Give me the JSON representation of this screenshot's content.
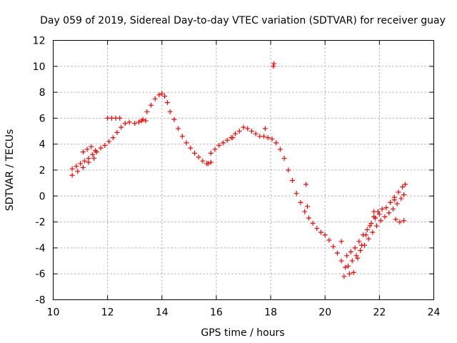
{
  "chart_data": {
    "type": "scatter",
    "title": "Day 059 of 2019, Sidereal Day-to-day VTEC variation (SDTVAR) for receiver guay",
    "xlabel": "GPS time / hours",
    "ylabel": "SDTVAR / TECUs",
    "xlim": [
      10,
      24
    ],
    "ylim": [
      -8,
      12
    ],
    "xticks": [
      10,
      12,
      14,
      16,
      18,
      20,
      22,
      24
    ],
    "yticks": [
      -8,
      -6,
      -4,
      -2,
      0,
      2,
      4,
      6,
      8,
      10,
      12
    ],
    "grid": true,
    "marker": "+",
    "color": "#ff0000",
    "series": [
      {
        "name": "main",
        "x": [
          10.7,
          10.85,
          11.0,
          11.15,
          11.3,
          11.45,
          11.6,
          11.75,
          11.9,
          12.05,
          12.2,
          12.35,
          12.5,
          12.65,
          12.8,
          13.0,
          13.15,
          13.3,
          13.45,
          13.6,
          13.75,
          13.9,
          14.0,
          14.1,
          14.2,
          14.3,
          14.45,
          14.6,
          14.75,
          14.9,
          15.05,
          15.2,
          15.35,
          15.5,
          15.65,
          15.8,
          15.95,
          16.1,
          16.25,
          16.4,
          16.55,
          16.7,
          16.85,
          17.0,
          17.15,
          17.3,
          17.45,
          17.6,
          17.75,
          17.9,
          18.05,
          18.2,
          18.35,
          18.5,
          18.65,
          18.8,
          18.95,
          19.1,
          19.25,
          19.4,
          19.55,
          19.7,
          19.85,
          20.0,
          20.15,
          20.3,
          20.45,
          20.6,
          20.75,
          20.9,
          21.05,
          21.2,
          21.35,
          21.5,
          21.65,
          21.8,
          21.95,
          22.1,
          22.25,
          22.4,
          22.55,
          22.7,
          22.85,
          22.95
        ],
        "y": [
          2.1,
          2.3,
          2.5,
          2.7,
          2.9,
          3.2,
          3.4,
          3.7,
          3.9,
          4.2,
          4.5,
          4.9,
          5.3,
          5.6,
          5.7,
          5.6,
          5.7,
          5.9,
          6.5,
          7.0,
          7.5,
          7.8,
          7.9,
          7.7,
          7.2,
          6.5,
          5.9,
          5.2,
          4.6,
          4.1,
          3.7,
          3.3,
          3.0,
          2.7,
          2.5,
          3.3,
          3.6,
          3.9,
          4.1,
          4.3,
          4.5,
          4.8,
          5.0,
          5.3,
          5.2,
          5.0,
          4.8,
          4.6,
          4.6,
          4.5,
          4.4,
          4.1,
          3.6,
          2.9,
          2.0,
          1.2,
          0.2,
          -0.5,
          -1.2,
          -1.7,
          -2.1,
          -2.5,
          -2.8,
          -3.0,
          -3.4,
          -3.9,
          -4.4,
          -5.0,
          -5.5,
          -6.0,
          -5.9,
          -4.8,
          -3.8,
          -3.0,
          -2.3,
          -1.6,
          -1.2,
          -1.0,
          -0.9,
          -0.5,
          -0.1,
          0.3,
          0.7,
          0.9
        ]
      },
      {
        "name": "lower-branch",
        "x": [
          10.7,
          10.9,
          11.1,
          11.3,
          11.5,
          20.85,
          21.0,
          21.15,
          21.3,
          21.45,
          21.6,
          21.75,
          21.9,
          22.05,
          22.2,
          22.35,
          22.5,
          22.65,
          22.8,
          22.9
        ],
        "y": [
          1.6,
          1.9,
          2.2,
          2.6,
          2.9,
          -5.4,
          -5.0,
          -4.6,
          -4.2,
          -3.8,
          -3.3,
          -2.8,
          -2.3,
          -1.9,
          -1.6,
          -1.3,
          -1.0,
          -0.6,
          -0.2,
          0.1
        ]
      },
      {
        "name": "upper-branch",
        "x": [
          11.1,
          11.25,
          11.4,
          11.55,
          12.0,
          12.15,
          12.3,
          12.45,
          13.25,
          13.4,
          20.8,
          20.95,
          21.1,
          21.25,
          21.4,
          21.55,
          21.7,
          21.85,
          22.6,
          22.75,
          22.9
        ],
        "y": [
          3.4,
          3.6,
          3.8,
          3.5,
          6.0,
          6.0,
          6.0,
          6.0,
          5.8,
          5.8,
          -4.6,
          -4.3,
          -4.0,
          -3.5,
          -3.0,
          -2.6,
          -2.1,
          -1.7,
          -1.8,
          -2.0,
          -1.9
        ]
      },
      {
        "name": "outliers",
        "x": [
          18.1,
          18.12,
          15.7,
          15.8,
          16.6,
          17.8,
          19.3,
          19.35,
          20.6,
          20.7,
          21.8,
          22.0,
          22.55
        ],
        "y": [
          10.0,
          10.2,
          2.5,
          2.6,
          4.5,
          5.2,
          0.9,
          -0.8,
          -3.5,
          -6.2,
          -1.2,
          -1.4,
          -0.3
        ]
      }
    ]
  }
}
